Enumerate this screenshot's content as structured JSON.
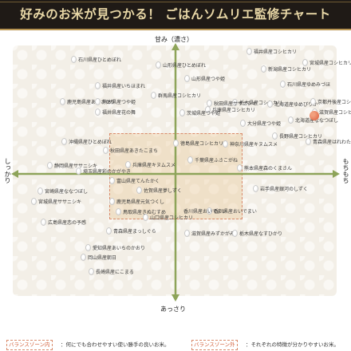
{
  "header": {
    "title": "好みのお米が見つかる！ ごはんソムリエ監修チャート"
  },
  "axes": {
    "top": "甘み（濃さ）",
    "bottom": "あっさり",
    "left": "しっかり",
    "right": "もちもち"
  },
  "colors": {
    "header_bg": "#1f1a16",
    "header_text": "#e8d7a6",
    "axis_green": "#8ea45a",
    "zone_fill": "#e9bc82",
    "zone_border": "#d98a6a",
    "highlight": "#d9593a"
  },
  "legend": {
    "inside_label": "バランスゾーン内",
    "inside_text": "：何にでも合わせやすい使い勝手の良いお米。",
    "outside_label": "バランスゾーン外",
    "outside_text": "：それぞれの特徴が分かりやすいお米。"
  },
  "varieties": [
    {
      "id": "fukui-koshi",
      "text": "福井県産コシヒカリ"
    },
    {
      "id": "ishikawa-hitomebore",
      "text": "石川県産ひとめぼれ"
    },
    {
      "id": "yamagata-hitomebore",
      "text": "山形県産ひとめぼれ"
    },
    {
      "id": "niigata-koshi",
      "text": "新潟県産コシヒカリ"
    },
    {
      "id": "miyagi-koshi",
      "text": "宮城県産コシヒカリ"
    },
    {
      "id": "yamagata-tsuyahime",
      "text": "山形県産つや姫"
    },
    {
      "id": "ishikawa-yumemizuho",
      "text": "石川県産ゆめみづほ"
    },
    {
      "id": "fukui-ichihomare",
      "text": "福井県産いちほまれ"
    },
    {
      "id": "kagoshima-akisakari",
      "text": "鹿児島県産あきさかり"
    },
    {
      "id": "kumamoto-tsuyahime",
      "text": "熊本県産つや姫"
    },
    {
      "id": "gunma-koshi",
      "text": "群馬県産コシヒカリ"
    },
    {
      "id": "fukui-hananomai",
      "text": "福井県産花の舞"
    },
    {
      "id": "tochigi-koshi",
      "text": "栃木県産コシヒカリ"
    },
    {
      "id": "akita-sasanishiki",
      "text": "秋田県産ササニシキ"
    },
    {
      "id": "hyogo-koshi",
      "text": "兵庫県産コシヒカリ"
    },
    {
      "id": "ibaraki-tsuyahime",
      "text": "茨城県産つや姫"
    },
    {
      "id": "hokkaido-yumepirika",
      "text": "北海道産ゆめぴりか"
    },
    {
      "id": "kyoto-koshi",
      "text": "京都丹後産コシヒカリ"
    },
    {
      "id": "shiga-koshi",
      "text": "滋賀県産コシヒカリ"
    },
    {
      "id": "oita-tsuyahime",
      "text": "大分県産つや姫"
    },
    {
      "id": "hokkaido-nanatsuboshi",
      "text": "北海道産ななつぼし"
    },
    {
      "id": "okinawa-hitomebore",
      "text": "沖縄県産ひとめぼれ"
    },
    {
      "id": "tokushima-koshi",
      "text": "徳島県産コシヒカリ"
    },
    {
      "id": "kanagawa-kinumusume",
      "text": "神奈川県産キヌムスメ"
    },
    {
      "id": "nagano-koshi",
      "text": "長野県産コシヒカリ"
    },
    {
      "id": "aomori-haregiwa",
      "text": "青森県産はれわたり"
    },
    {
      "id": "akita-akitakomachi",
      "text": "秋田県産あきたこまち"
    },
    {
      "id": "chiba-fusakogane",
      "text": "千葉県産ふさこがね"
    },
    {
      "id": "shizuoka-sasanishiki",
      "text": "静岡県産ササニシキ"
    },
    {
      "id": "kagawa-oidemai",
      "text": "香川県産おいでまい"
    },
    {
      "id": "hyogo-kinumusume",
      "text": "兵庫県産キヌムスメ"
    },
    {
      "id": "kumamoto-mori",
      "text": "熊本県産森のくまさん"
    },
    {
      "id": "saitama-sainokagayaki",
      "text": "埼玉県産彩のかがやき"
    },
    {
      "id": "toyama-tentakaku",
      "text": "富山県産てんたかく"
    },
    {
      "id": "iwate-ginganoshizuku",
      "text": "岩手県産銀河のしずく"
    },
    {
      "id": "miyazaki-nanatsuboshi",
      "text": "宮崎県産ななつぼし"
    },
    {
      "id": "saga-yumeshizuku",
      "text": "佐賀県産夢しずく"
    },
    {
      "id": "kagoshima-genki",
      "text": "鹿児島県産元気つくし"
    },
    {
      "id": "miyazaki-sasanishiki",
      "text": "宮城県産ササニシキ"
    },
    {
      "id": "tottori-kinumusume",
      "text": "鳥取県産きぬむすめ"
    },
    {
      "id": "yamaguchi-koshi",
      "text": "山口県産コシヒカリ"
    },
    {
      "id": "hiroshima-koshi",
      "text": "広島県産恋の予感"
    },
    {
      "id": "aomori-mashigura",
      "text": "青森県産まっしぐら"
    },
    {
      "id": "kagawa-oidemai2",
      "text": "香川県産おいでまい"
    },
    {
      "id": "shiga-mizukagami",
      "text": "滋賀県産みずかがみ"
    },
    {
      "id": "tochigi-nasuhikari",
      "text": "栃木県産なすひかり"
    },
    {
      "id": "aichi-aichinokaori",
      "text": "愛知県産あいちのかおり"
    },
    {
      "id": "okayama-asahi",
      "text": "岡山県産朝日"
    },
    {
      "id": "nagasaki-nikomaru",
      "text": "長崎県産にこまる"
    }
  ]
}
